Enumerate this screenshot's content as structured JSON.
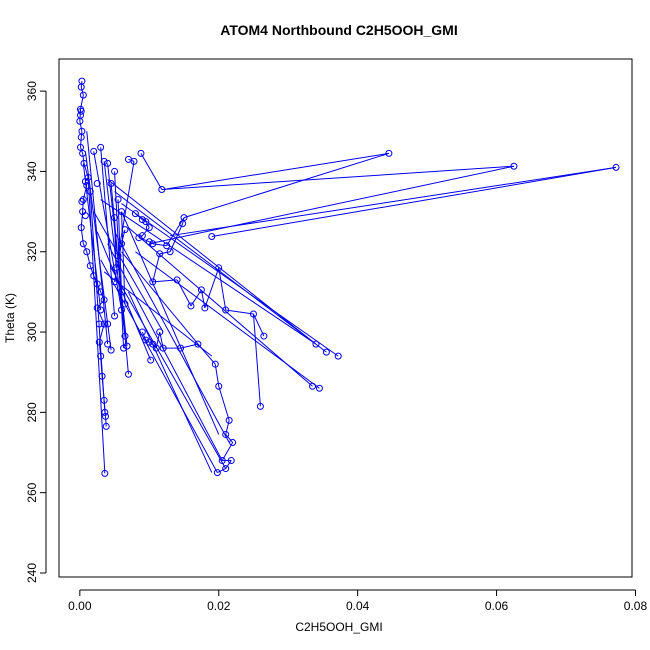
{
  "chart_data": {
    "type": "scatter",
    "title": "ATOM4 Northbound C2H5OOH_GMI",
    "xlabel": "C2H5OOH_GMI",
    "ylabel": "Theta (K)",
    "xlim": [
      -0.003,
      0.0795
    ],
    "ylim": [
      239,
      368
    ],
    "x_ticks": [
      0.0,
      0.02,
      0.04,
      0.06,
      0.08
    ],
    "x_tick_labels": [
      "0.00",
      "0.02",
      "0.04",
      "0.06",
      "0.08"
    ],
    "y_ticks": [
      240,
      260,
      280,
      300,
      320,
      340,
      360
    ],
    "y_tick_labels": [
      "240",
      "260",
      "280",
      "300",
      "320",
      "340",
      "360"
    ],
    "grid": false,
    "color": "#0000ee",
    "marker": "open-circle",
    "connected": true,
    "points": [
      [
        0.0003,
        362.5
      ],
      [
        0.0002,
        361.0
      ],
      [
        0.0005,
        359.0
      ],
      [
        0.0001,
        355.5
      ],
      [
        0.0002,
        355.0
      ],
      [
        0.0001,
        354.0
      ],
      [
        0.0,
        352.5
      ],
      [
        0.0003,
        350.0
      ],
      [
        0.0002,
        348.5
      ],
      [
        0.0001,
        346.0
      ],
      [
        0.0004,
        344.5
      ],
      [
        0.0006,
        342.0
      ],
      [
        0.0012,
        338.5
      ],
      [
        0.0008,
        337.5
      ],
      [
        0.001,
        336.5
      ],
      [
        0.0025,
        337.0
      ],
      [
        0.0015,
        335.0
      ],
      [
        0.0005,
        333.0
      ],
      [
        0.0003,
        332.5
      ],
      [
        0.0004,
        330.0
      ],
      [
        0.0008,
        329.0
      ],
      [
        0.0002,
        326.0
      ],
      [
        0.0005,
        322.0
      ],
      [
        0.001,
        320.0
      ],
      [
        0.0015,
        316.5
      ],
      [
        0.002,
        314.0
      ],
      [
        0.0025,
        312.0
      ],
      [
        0.003,
        310.0
      ],
      [
        0.0035,
        308.0
      ],
      [
        0.0025,
        306.0
      ],
      [
        0.003,
        305.5
      ],
      [
        0.0035,
        302.0
      ],
      [
        0.0028,
        302.0
      ],
      [
        0.004,
        302.0
      ],
      [
        0.0028,
        297.5
      ],
      [
        0.004,
        297.0
      ],
      [
        0.0045,
        295.5
      ],
      [
        0.003,
        294.0
      ],
      [
        0.0032,
        289.0
      ],
      [
        0.0035,
        283.0
      ],
      [
        0.0036,
        280.0
      ],
      [
        0.0037,
        279.0
      ],
      [
        0.0038,
        276.5
      ],
      [
        0.0036,
        264.8
      ],
      [
        0.002,
        345.0
      ],
      [
        0.003,
        346.0
      ],
      [
        0.0035,
        342.5
      ],
      [
        0.004,
        342.0
      ],
      [
        0.005,
        340.0
      ],
      [
        0.0045,
        337.0
      ],
      [
        0.0055,
        333.0
      ],
      [
        0.006,
        330.0
      ],
      [
        0.005,
        328.5
      ],
      [
        0.007,
        343.0
      ],
      [
        0.0078,
        342.5
      ],
      [
        0.0088,
        344.5
      ],
      [
        0.0118,
        335.5
      ],
      [
        0.0065,
        325.5
      ],
      [
        0.006,
        322.0
      ],
      [
        0.0055,
        319.0
      ],
      [
        0.0052,
        316.0
      ],
      [
        0.005,
        312.5
      ],
      [
        0.006,
        310.0
      ],
      [
        0.0065,
        307.0
      ],
      [
        0.006,
        305.5
      ],
      [
        0.005,
        304.0
      ],
      [
        0.0065,
        299.0
      ],
      [
        0.0068,
        296.5
      ],
      [
        0.0063,
        296.0
      ],
      [
        0.007,
        289.5
      ],
      [
        0.008,
        329.5
      ],
      [
        0.009,
        328.0
      ],
      [
        0.0095,
        327.5
      ],
      [
        0.01,
        326.0
      ],
      [
        0.009,
        324.0
      ],
      [
        0.0085,
        323.5
      ],
      [
        0.01,
        322.5
      ],
      [
        0.0105,
        322.0
      ],
      [
        0.0125,
        321.5
      ],
      [
        0.015,
        328.5
      ],
      [
        0.0148,
        327.0
      ],
      [
        0.013,
        320.0
      ],
      [
        0.0115,
        319.5
      ],
      [
        0.0105,
        312.5
      ],
      [
        0.014,
        313.0
      ],
      [
        0.016,
        306.5
      ],
      [
        0.0175,
        310.5
      ],
      [
        0.018,
        306.0
      ],
      [
        0.019,
        323.8
      ],
      [
        0.02,
        316.0
      ],
      [
        0.021,
        305.5
      ],
      [
        0.025,
        304.5
      ],
      [
        0.0265,
        299.0
      ],
      [
        0.026,
        281.5
      ],
      [
        0.034,
        297.0
      ],
      [
        0.0355,
        295.0
      ],
      [
        0.0372,
        294.0
      ],
      [
        0.0335,
        286.5
      ],
      [
        0.0345,
        286.0
      ],
      [
        0.0445,
        344.5
      ],
      [
        0.0625,
        341.3
      ],
      [
        0.0772,
        341.0
      ],
      [
        0.009,
        300.0
      ],
      [
        0.0095,
        298.0
      ],
      [
        0.01,
        297.5
      ],
      [
        0.0105,
        297.0
      ],
      [
        0.011,
        296.0
      ],
      [
        0.0115,
        300.0
      ],
      [
        0.012,
        296.0
      ],
      [
        0.0145,
        296.0
      ],
      [
        0.017,
        297.0
      ],
      [
        0.0195,
        292.0
      ],
      [
        0.02,
        286.5
      ],
      [
        0.0215,
        278.0
      ],
      [
        0.021,
        274.5
      ],
      [
        0.022,
        272.5
      ],
      [
        0.0205,
        268.0
      ],
      [
        0.0218,
        268.0
      ],
      [
        0.021,
        266.0
      ],
      [
        0.0198,
        265.0
      ],
      [
        0.0102,
        293.0
      ]
    ],
    "segments": [
      [
        0.0003,
        362.5,
        0.0002,
        361.0
      ],
      [
        0.0002,
        361.0,
        0.0005,
        359.0
      ],
      [
        0.0005,
        359.0,
        0.0001,
        355.5
      ],
      [
        0.0001,
        355.5,
        0.0,
        352.5
      ],
      [
        0.0,
        352.5,
        0.0003,
        350.0
      ],
      [
        0.0003,
        350.0,
        0.0002,
        348.5
      ],
      [
        0.0002,
        348.5,
        0.0001,
        346.0
      ],
      [
        0.0001,
        346.0,
        0.0004,
        344.5
      ],
      [
        0.0004,
        344.5,
        0.0006,
        342.0
      ],
      [
        0.0006,
        342.0,
        0.0012,
        338.5
      ],
      [
        0.0012,
        338.5,
        0.0008,
        337.5
      ],
      [
        0.0008,
        337.5,
        0.001,
        336.5
      ],
      [
        0.001,
        336.5,
        0.0005,
        333.0
      ],
      [
        0.0005,
        333.0,
        0.0004,
        330.0
      ],
      [
        0.0004,
        330.0,
        0.0002,
        326.0
      ],
      [
        0.0002,
        326.0,
        0.0005,
        322.0
      ],
      [
        0.0005,
        322.0,
        0.001,
        320.0
      ],
      [
        0.001,
        320.0,
        0.0015,
        316.5
      ],
      [
        0.0015,
        316.5,
        0.002,
        314.0
      ],
      [
        0.002,
        314.0,
        0.0025,
        312.0
      ],
      [
        0.0025,
        312.0,
        0.003,
        310.0
      ],
      [
        0.003,
        310.0,
        0.0035,
        308.0
      ],
      [
        0.0035,
        308.0,
        0.0025,
        306.0
      ],
      [
        0.0025,
        306.0,
        0.0035,
        302.0
      ],
      [
        0.0035,
        302.0,
        0.0028,
        297.5
      ],
      [
        0.0028,
        297.5,
        0.003,
        294.0
      ],
      [
        0.003,
        294.0,
        0.0032,
        289.0
      ],
      [
        0.0032,
        289.0,
        0.0035,
        283.0
      ],
      [
        0.0035,
        283.0,
        0.0037,
        279.0
      ],
      [
        0.0037,
        279.0,
        0.0038,
        276.5
      ],
      [
        0.0012,
        338.5,
        0.0036,
        264.8
      ],
      [
        0.001,
        350.0,
        0.004,
        297.0
      ],
      [
        0.0008,
        345.0,
        0.0045,
        295.5
      ],
      [
        0.0005,
        342.0,
        0.003,
        305.5
      ],
      [
        0.0015,
        335.0,
        0.0036,
        280.0
      ],
      [
        0.002,
        345.0,
        0.006,
        305.5
      ],
      [
        0.003,
        346.0,
        0.005,
        304.0
      ],
      [
        0.0035,
        342.5,
        0.0065,
        299.0
      ],
      [
        0.004,
        342.0,
        0.0068,
        296.5
      ],
      [
        0.005,
        340.0,
        0.0063,
        296.0
      ],
      [
        0.0045,
        337.0,
        0.007,
        289.5
      ],
      [
        0.0055,
        333.0,
        0.006,
        310.0
      ],
      [
        0.006,
        330.0,
        0.0065,
        307.0
      ],
      [
        0.005,
        328.5,
        0.0052,
        316.0
      ],
      [
        0.007,
        343.0,
        0.0078,
        342.5
      ],
      [
        0.0088,
        344.5,
        0.0118,
        335.5
      ],
      [
        0.0078,
        342.5,
        0.0055,
        319.0
      ],
      [
        0.0065,
        325.5,
        0.006,
        322.0
      ],
      [
        0.006,
        322.0,
        0.005,
        312.5
      ],
      [
        0.012,
        335.5,
        0.0445,
        344.5
      ],
      [
        0.0118,
        335.5,
        0.0625,
        341.3
      ],
      [
        0.013,
        324.0,
        0.0772,
        341.0
      ],
      [
        0.01,
        322.0,
        0.0625,
        341.3
      ],
      [
        0.015,
        328.5,
        0.0445,
        344.5
      ],
      [
        0.019,
        323.8,
        0.0772,
        341.0
      ],
      [
        0.008,
        329.5,
        0.009,
        328.0
      ],
      [
        0.009,
        328.0,
        0.0095,
        327.5
      ],
      [
        0.0095,
        327.5,
        0.01,
        326.0
      ],
      [
        0.01,
        326.0,
        0.009,
        324.0
      ],
      [
        0.009,
        324.0,
        0.0085,
        323.5
      ],
      [
        0.0085,
        323.5,
        0.01,
        322.5
      ],
      [
        0.01,
        322.5,
        0.0105,
        322.0
      ],
      [
        0.0105,
        322.0,
        0.0125,
        321.5
      ],
      [
        0.0125,
        321.5,
        0.015,
        328.5
      ],
      [
        0.015,
        328.5,
        0.0148,
        327.0
      ],
      [
        0.0148,
        327.0,
        0.013,
        320.0
      ],
      [
        0.013,
        320.0,
        0.0115,
        319.5
      ],
      [
        0.0115,
        319.5,
        0.0105,
        312.5
      ],
      [
        0.0105,
        312.5,
        0.014,
        313.0
      ],
      [
        0.014,
        313.0,
        0.016,
        306.5
      ],
      [
        0.016,
        306.5,
        0.0175,
        310.5
      ],
      [
        0.0175,
        310.5,
        0.018,
        306.0
      ],
      [
        0.018,
        306.0,
        0.02,
        316.0
      ],
      [
        0.02,
        316.0,
        0.021,
        305.5
      ],
      [
        0.021,
        305.5,
        0.025,
        304.5
      ],
      [
        0.025,
        304.5,
        0.0265,
        299.0
      ],
      [
        0.025,
        304.5,
        0.026,
        281.5
      ],
      [
        0.004,
        338.0,
        0.034,
        297.0
      ],
      [
        0.005,
        335.0,
        0.0355,
        295.0
      ],
      [
        0.006,
        332.0,
        0.0372,
        294.0
      ],
      [
        0.007,
        326.0,
        0.0335,
        286.5
      ],
      [
        0.008,
        320.0,
        0.0345,
        286.0
      ],
      [
        0.003,
        333.0,
        0.034,
        297.0
      ],
      [
        0.009,
        300.0,
        0.0095,
        298.0
      ],
      [
        0.0095,
        298.0,
        0.01,
        297.5
      ],
      [
        0.01,
        297.5,
        0.0105,
        297.0
      ],
      [
        0.0105,
        297.0,
        0.011,
        296.0
      ],
      [
        0.011,
        296.0,
        0.0115,
        300.0
      ],
      [
        0.0115,
        300.0,
        0.012,
        296.0
      ],
      [
        0.012,
        296.0,
        0.0145,
        296.0
      ],
      [
        0.0145,
        296.0,
        0.017,
        297.0
      ],
      [
        0.017,
        297.0,
        0.0195,
        292.0
      ],
      [
        0.0195,
        292.0,
        0.02,
        286.5
      ],
      [
        0.02,
        286.5,
        0.0215,
        278.0
      ],
      [
        0.0215,
        278.0,
        0.021,
        274.5
      ],
      [
        0.021,
        274.5,
        0.022,
        272.5
      ],
      [
        0.022,
        272.5,
        0.0205,
        268.0
      ],
      [
        0.0205,
        268.0,
        0.0218,
        268.0
      ],
      [
        0.0218,
        268.0,
        0.021,
        266.0
      ],
      [
        0.021,
        266.0,
        0.0198,
        265.0
      ],
      [
        0.006,
        330.0,
        0.02,
        274.5
      ],
      [
        0.005,
        325.0,
        0.0215,
        272.5
      ],
      [
        0.004,
        322.0,
        0.0205,
        268.0
      ],
      [
        0.003,
        318.0,
        0.0198,
        265.0
      ],
      [
        0.0045,
        316.0,
        0.021,
        266.0
      ],
      [
        0.007,
        310.0,
        0.019,
        265.0
      ],
      [
        0.0025,
        325.0,
        0.0102,
        293.0
      ],
      [
        0.002,
        330.0,
        0.012,
        300.0
      ],
      [
        0.006,
        320.0,
        0.0175,
        296.0
      ],
      [
        0.0035,
        315.0,
        0.019,
        294.0
      ]
    ]
  }
}
